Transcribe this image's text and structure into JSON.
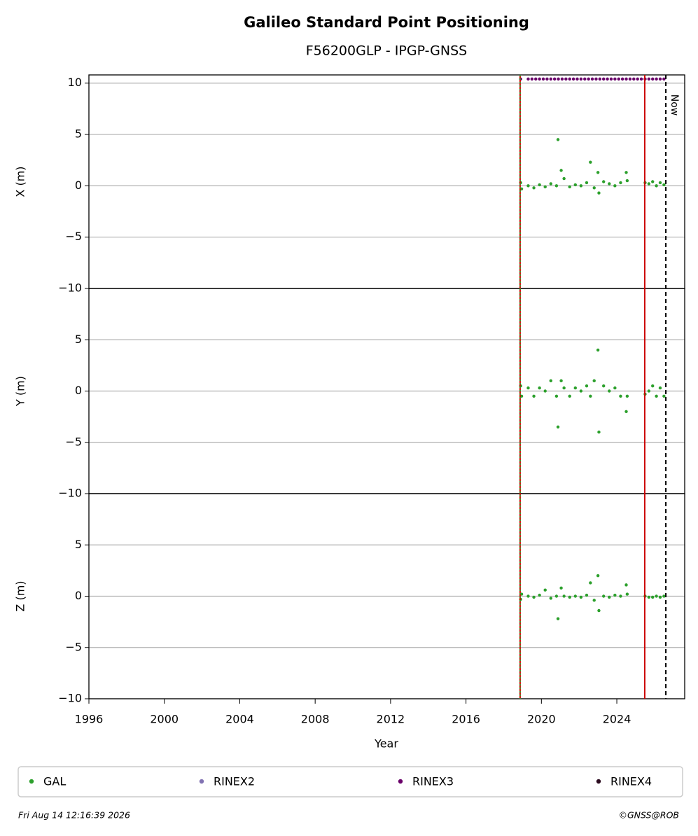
{
  "chart_data": {
    "type": "scatter",
    "title": "Galileo Standard Point Positioning",
    "subtitle": "F56200GLP - IPGP-GNSS",
    "xlabel": "Year",
    "xlim": [
      1996,
      2027.6
    ],
    "xticks": [
      1996,
      2000,
      2004,
      2008,
      2012,
      2016,
      2020,
      2024
    ],
    "grid": true,
    "vlines": [
      {
        "x": 2018.87,
        "color": "#cc0000",
        "style": "solid"
      },
      {
        "x": 2018.87,
        "color": "#2ca02c",
        "style": "dotted"
      },
      {
        "x": 2025.48,
        "color": "#cc0000",
        "style": "solid"
      },
      {
        "x": 2026.6,
        "color": "#000000",
        "style": "dashed",
        "label": "Now"
      }
    ],
    "legend": [
      {
        "name": "GAL",
        "color": "#2ca02c"
      },
      {
        "name": "RINEX2",
        "color": "#8172b2"
      },
      {
        "name": "RINEX3",
        "color": "#6a006a"
      },
      {
        "name": "RINEX4",
        "color": "#2a0a1e"
      }
    ],
    "panels": [
      {
        "ylabel": "X (m)",
        "ylim": [
          -10,
          10.8
        ],
        "yticks": [
          {
            "value": -10,
            "label": "−10"
          },
          {
            "value": -5,
            "label": "−5"
          },
          0,
          5,
          10
        ],
        "series": [
          {
            "name": "GAL",
            "color": "#2ca02c",
            "x": [
              2018.9,
              2018.95,
              2019.3,
              2019.6,
              2019.9,
              2020.2,
              2020.5,
              2020.8,
              2020.88,
              2021.05,
              2021.2,
              2021.5,
              2021.8,
              2022.1,
              2022.4,
              2022.6,
              2022.8,
              2023.0,
              2023.05,
              2023.3,
              2023.6,
              2023.9,
              2024.2,
              2024.5,
              2024.55,
              2025.5,
              2025.7,
              2025.9,
              2026.1,
              2026.3,
              2026.5
            ],
            "values": [
              0.3,
              -0.3,
              0,
              -0.2,
              0.1,
              -0.1,
              0.2,
              0,
              4.5,
              1.5,
              0.7,
              -0.1,
              0.1,
              0,
              0.3,
              2.3,
              -0.2,
              1.3,
              -0.7,
              0.4,
              0.2,
              0,
              0.3,
              1.3,
              0.5,
              0.3,
              0.2,
              0.4,
              0,
              0.3,
              0.1
            ]
          },
          {
            "name": "RINEX3",
            "color": "#6a006a",
            "x": [
              2018.9,
              2019.3,
              2019.5,
              2019.7,
              2019.9,
              2020.1,
              2020.3,
              2020.5,
              2020.7,
              2020.9,
              2021.1,
              2021.3,
              2021.5,
              2021.7,
              2021.9,
              2022.1,
              2022.3,
              2022.5,
              2022.7,
              2022.9,
              2023.1,
              2023.3,
              2023.5,
              2023.7,
              2023.9,
              2024.1,
              2024.3,
              2024.5,
              2024.7,
              2024.9,
              2025.1,
              2025.3,
              2025.5,
              2025.7,
              2025.9,
              2026.1,
              2026.3,
              2026.5
            ],
            "values": [
              10.4,
              10.4,
              10.4,
              10.4,
              10.4,
              10.4,
              10.4,
              10.4,
              10.4,
              10.4,
              10.4,
              10.4,
              10.4,
              10.4,
              10.4,
              10.4,
              10.4,
              10.4,
              10.4,
              10.4,
              10.4,
              10.4,
              10.4,
              10.4,
              10.4,
              10.4,
              10.4,
              10.4,
              10.4,
              10.4,
              10.4,
              10.4,
              10.4,
              10.4,
              10.4,
              10.4,
              10.4,
              10.4
            ]
          }
        ]
      },
      {
        "ylabel": "Y (m)",
        "ylim": [
          -10,
          10
        ],
        "yticks": [
          {
            "value": -10,
            "label": "−10"
          },
          {
            "value": -5,
            "label": "−5"
          },
          0,
          5
        ],
        "series": [
          {
            "name": "GAL",
            "color": "#2ca02c",
            "x": [
              2018.9,
              2018.95,
              2019.3,
              2019.6,
              2019.9,
              2020.2,
              2020.5,
              2020.8,
              2020.88,
              2021.05,
              2021.2,
              2021.5,
              2021.8,
              2022.1,
              2022.4,
              2022.6,
              2022.8,
              2023.0,
              2023.05,
              2023.3,
              2023.6,
              2023.9,
              2024.2,
              2024.5,
              2024.55,
              2025.5,
              2025.7,
              2025.9,
              2026.1,
              2026.3,
              2026.5
            ],
            "values": [
              0.5,
              -0.5,
              0.3,
              -0.5,
              0.3,
              0,
              1.0,
              -0.5,
              -3.5,
              1.0,
              0.3,
              -0.5,
              0.3,
              0,
              0.5,
              -0.5,
              1.0,
              4.0,
              -4.0,
              0.5,
              0,
              0.3,
              -0.5,
              -2.0,
              -0.5,
              -0.3,
              0,
              0.5,
              -0.5,
              0.3,
              -0.5
            ]
          }
        ]
      },
      {
        "ylabel": "Z (m)",
        "ylim": [
          -10,
          10
        ],
        "yticks": [
          {
            "value": -10,
            "label": "−10"
          },
          {
            "value": -5,
            "label": "−5"
          },
          0,
          5
        ],
        "series": [
          {
            "name": "GAL",
            "color": "#2ca02c",
            "x": [
              2018.9,
              2018.95,
              2019.3,
              2019.6,
              2019.9,
              2020.2,
              2020.5,
              2020.8,
              2020.88,
              2021.05,
              2021.2,
              2021.5,
              2021.8,
              2022.1,
              2022.4,
              2022.6,
              2022.8,
              2023.0,
              2023.05,
              2023.3,
              2023.6,
              2023.9,
              2024.2,
              2024.5,
              2024.55,
              2025.5,
              2025.7,
              2025.9,
              2026.1,
              2026.3,
              2026.5
            ],
            "values": [
              -0.3,
              0.2,
              0,
              -0.1,
              0.1,
              0.6,
              -0.2,
              0,
              -2.2,
              0.8,
              0,
              -0.1,
              0,
              -0.1,
              0.1,
              1.3,
              -0.4,
              2.0,
              -1.4,
              0,
              -0.1,
              0.1,
              0,
              1.1,
              0.2,
              0,
              -0.1,
              -0.1,
              0,
              -0.1,
              0
            ]
          }
        ]
      }
    ],
    "footer": {
      "timestamp": "Fri Aug 14 12:16:39 2026",
      "credit": "©GNSS@ROB"
    }
  }
}
